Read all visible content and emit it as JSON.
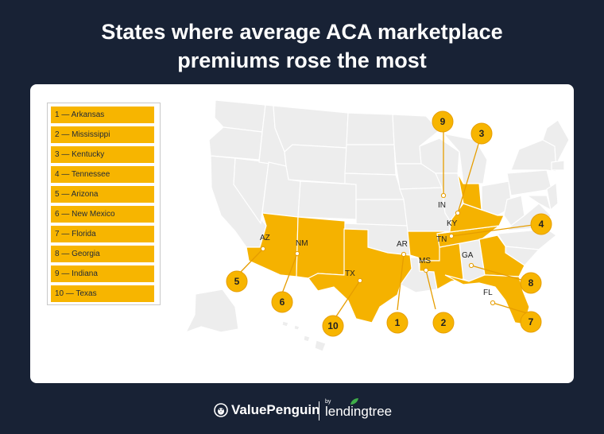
{
  "title": {
    "line1": "States where average ACA marketplace",
    "line2": "premiums rose the most"
  },
  "legend": [
    "1 — Arkansas",
    "2 — Mississippi",
    "3 — Kentucky",
    "4 — Tennessee",
    "5 — Arizona",
    "6 — New Mexico",
    "7 — Florida",
    "8 — Georgia",
    "9 — Indiana",
    "10 — Texas"
  ],
  "map": {
    "state_labels": {
      "AZ": "AZ",
      "NM": "NM",
      "TX": "TX",
      "AR": "AR",
      "MS": "MS",
      "TN": "TN",
      "KY": "KY",
      "IN": "IN",
      "GA": "GA",
      "FL": "FL"
    },
    "badges": [
      "1",
      "2",
      "3",
      "4",
      "5",
      "6",
      "7",
      "8",
      "9",
      "10"
    ],
    "highlight_color": "#f5b200",
    "base_color": "#ededed"
  },
  "footer": {
    "brand": "ValuePenguin",
    "by": "by",
    "partner": "lendingtree"
  }
}
